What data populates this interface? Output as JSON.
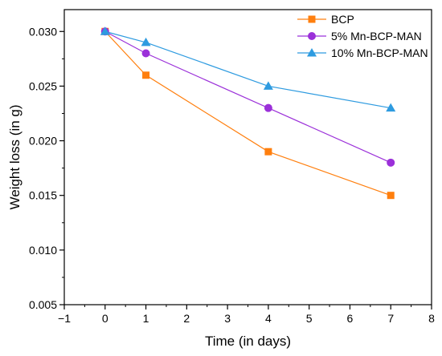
{
  "chart_data": {
    "type": "line",
    "title": "",
    "xlabel": "Time (in days)",
    "ylabel": "Weight loss (in g)",
    "xlim": [
      -1,
      8
    ],
    "ylim": [
      0.005,
      0.032
    ],
    "x_ticks": [
      -1,
      0,
      1,
      2,
      3,
      4,
      5,
      6,
      7,
      8
    ],
    "x_tick_labels": [
      "−1",
      "0",
      "1",
      "2",
      "3",
      "4",
      "5",
      "6",
      "7",
      "8"
    ],
    "y_ticks": [
      0.005,
      0.01,
      0.015,
      0.02,
      0.025,
      0.03
    ],
    "y_tick_labels": [
      "0.005",
      "0.010",
      "0.015",
      "0.020",
      "0.025",
      "0.030"
    ],
    "grid": false,
    "legend_position": "top-right",
    "x": [
      0,
      1,
      4,
      7
    ],
    "series": [
      {
        "name": "BCP",
        "values": [
          0.03,
          0.026,
          0.019,
          0.015
        ],
        "color": "#ff7f0e",
        "marker": "square"
      },
      {
        "name": " 5% Mn-BCP-MAN",
        "values": [
          0.03,
          0.028,
          0.023,
          0.018
        ],
        "color": "#9b30d9",
        "marker": "circle"
      },
      {
        "name": "10% Mn-BCP-MAN",
        "values": [
          0.03,
          0.029,
          0.025,
          0.023
        ],
        "color": "#2e9be0",
        "marker": "triangle"
      }
    ]
  }
}
